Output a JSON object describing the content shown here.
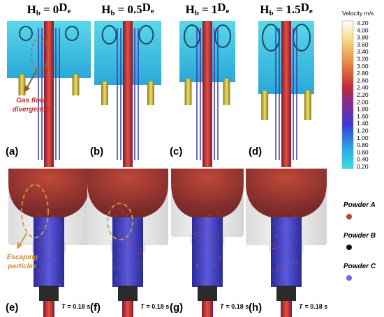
{
  "figure": {
    "column_titles": [
      {
        "lhs": "H",
        "lhs_sub": "b",
        "eq": "=",
        "coef": "0",
        "rhs": "D",
        "rhs_sub": "e"
      },
      {
        "lhs": "H",
        "lhs_sub": "b",
        "eq": "=",
        "coef": "0.5",
        "rhs": "D",
        "rhs_sub": "e"
      },
      {
        "lhs": "H",
        "lhs_sub": "b",
        "eq": "=",
        "coef": "1",
        "rhs": "D",
        "rhs_sub": "e"
      },
      {
        "lhs": "H",
        "lhs_sub": "b",
        "eq": "=",
        "coef": "1.5",
        "rhs": "D",
        "rhs_sub": "e"
      }
    ],
    "top_panel_labels": [
      "(a)",
      "(b)",
      "(c)",
      "(d)"
    ],
    "bottom_panel_labels": [
      "(e)",
      "(f)",
      "(g)",
      "(h)"
    ],
    "time_label": {
      "var": "T",
      "rest": "= 0.18 s"
    },
    "colorbar": {
      "title": "Velocity m/s",
      "labels": [
        "4.20",
        "4.00",
        "3.80",
        "3.60",
        "3.40",
        "3.20",
        "3.00",
        "2.80",
        "2.60",
        "2.40",
        "2.20",
        "2.00",
        "1.80",
        "1.60",
        "1.40",
        "1.20",
        "1.00",
        "0.80",
        "0.60",
        "0.40",
        "0.20"
      ]
    },
    "annotations": {
      "gas_flow": [
        "Gas flow",
        "divergence"
      ],
      "escaping": [
        "Escaping",
        "particles"
      ]
    },
    "legend": [
      {
        "name": "Powder A",
        "color": "#b5443a"
      },
      {
        "name": "Powder B",
        "color": "#111111"
      },
      {
        "name": "Powder C",
        "color": "#6a6ae0"
      }
    ]
  }
}
